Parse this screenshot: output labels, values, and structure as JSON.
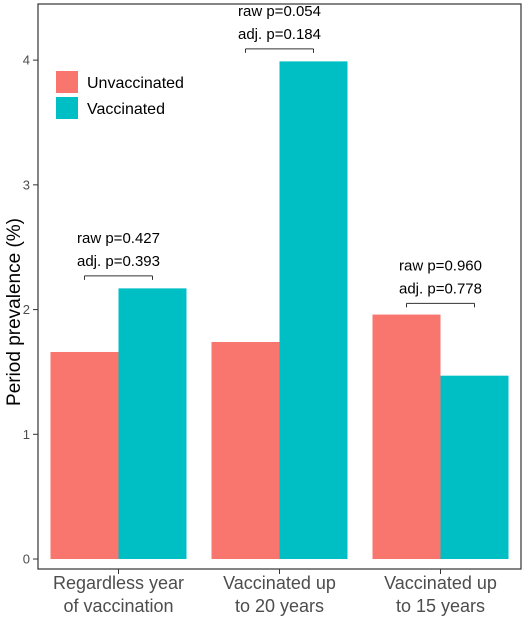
{
  "chart_data": {
    "type": "bar",
    "title": "",
    "xlabel": "",
    "ylabel": "Period prevalence (%)",
    "ylim": [
      -0.08,
      4.45
    ],
    "yticks": [
      "0",
      "1",
      "2",
      "3",
      "4"
    ],
    "grid": false,
    "legend_position": "top-left",
    "category_lines": [
      [
        "Regardless year",
        "of vaccination"
      ],
      [
        "Vaccinated up",
        "to 20 years"
      ],
      [
        "Vaccinated up",
        "to 15 years"
      ]
    ],
    "series": [
      {
        "name": "Unvaccinated",
        "color": "#f8766d",
        "values": [
          1.66,
          1.74,
          1.96
        ]
      },
      {
        "name": "Vaccinated",
        "color": "#00bfc4",
        "values": [
          2.17,
          3.99,
          1.47
        ]
      }
    ],
    "annotations": [
      {
        "raw": "raw p=0.427",
        "adj": "adj. p=0.393",
        "bracket_y": 2.27
      },
      {
        "raw": "raw p=0.054",
        "adj": "adj. p=0.184",
        "bracket_y": 4.09
      },
      {
        "raw": "raw p=0.960",
        "adj": "adj. p=0.778",
        "bracket_y": 2.05
      }
    ]
  }
}
